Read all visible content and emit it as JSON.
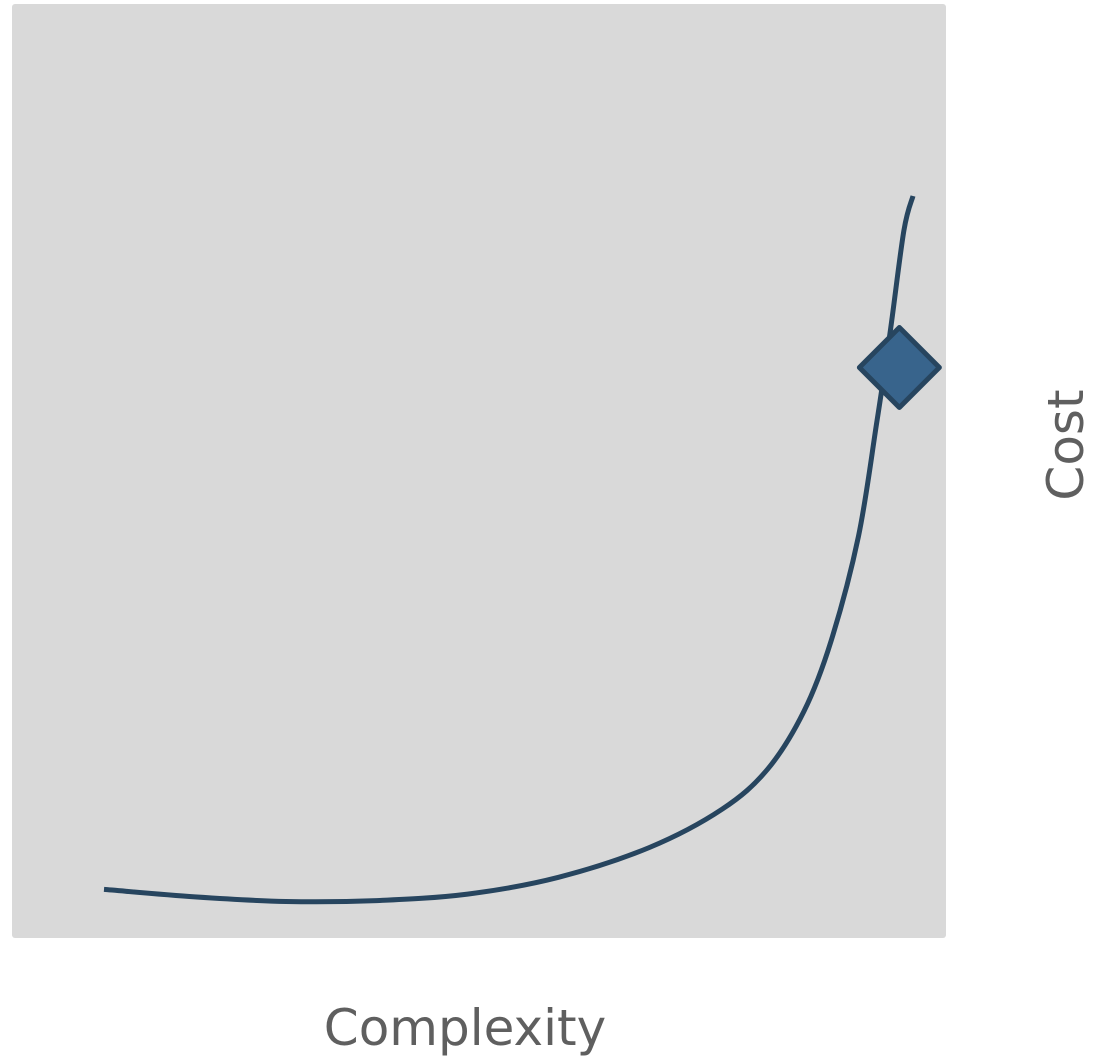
{
  "chart_data": {
    "type": "line",
    "title": "",
    "xlabel": "Complexity",
    "ylabel": "Cost",
    "ylabel_position": "right",
    "xlim": [
      0,
      100
    ],
    "ylim": [
      0,
      100
    ],
    "grid": false,
    "legend": "none",
    "axis_ticks": "none",
    "series": [
      {
        "color": "#27455f",
        "x": [
          0,
          10,
          20,
          30,
          40,
          50,
          60,
          68,
          73,
          77,
          80,
          83,
          85,
          86.5,
          88,
          89
        ],
        "y": [
          5,
          4.2,
          3.7,
          3.8,
          4.5,
          6.3,
          9.5,
          13.6,
          17.9,
          24.1,
          31.7,
          42.9,
          55,
          64.9,
          75.7,
          79.4
        ]
      }
    ],
    "marker": {
      "shape": "diamond",
      "x": 87.5,
      "y": 61,
      "fill": "#38648c",
      "stroke": "#27455f"
    },
    "plot_background": "#d9d9d9"
  }
}
